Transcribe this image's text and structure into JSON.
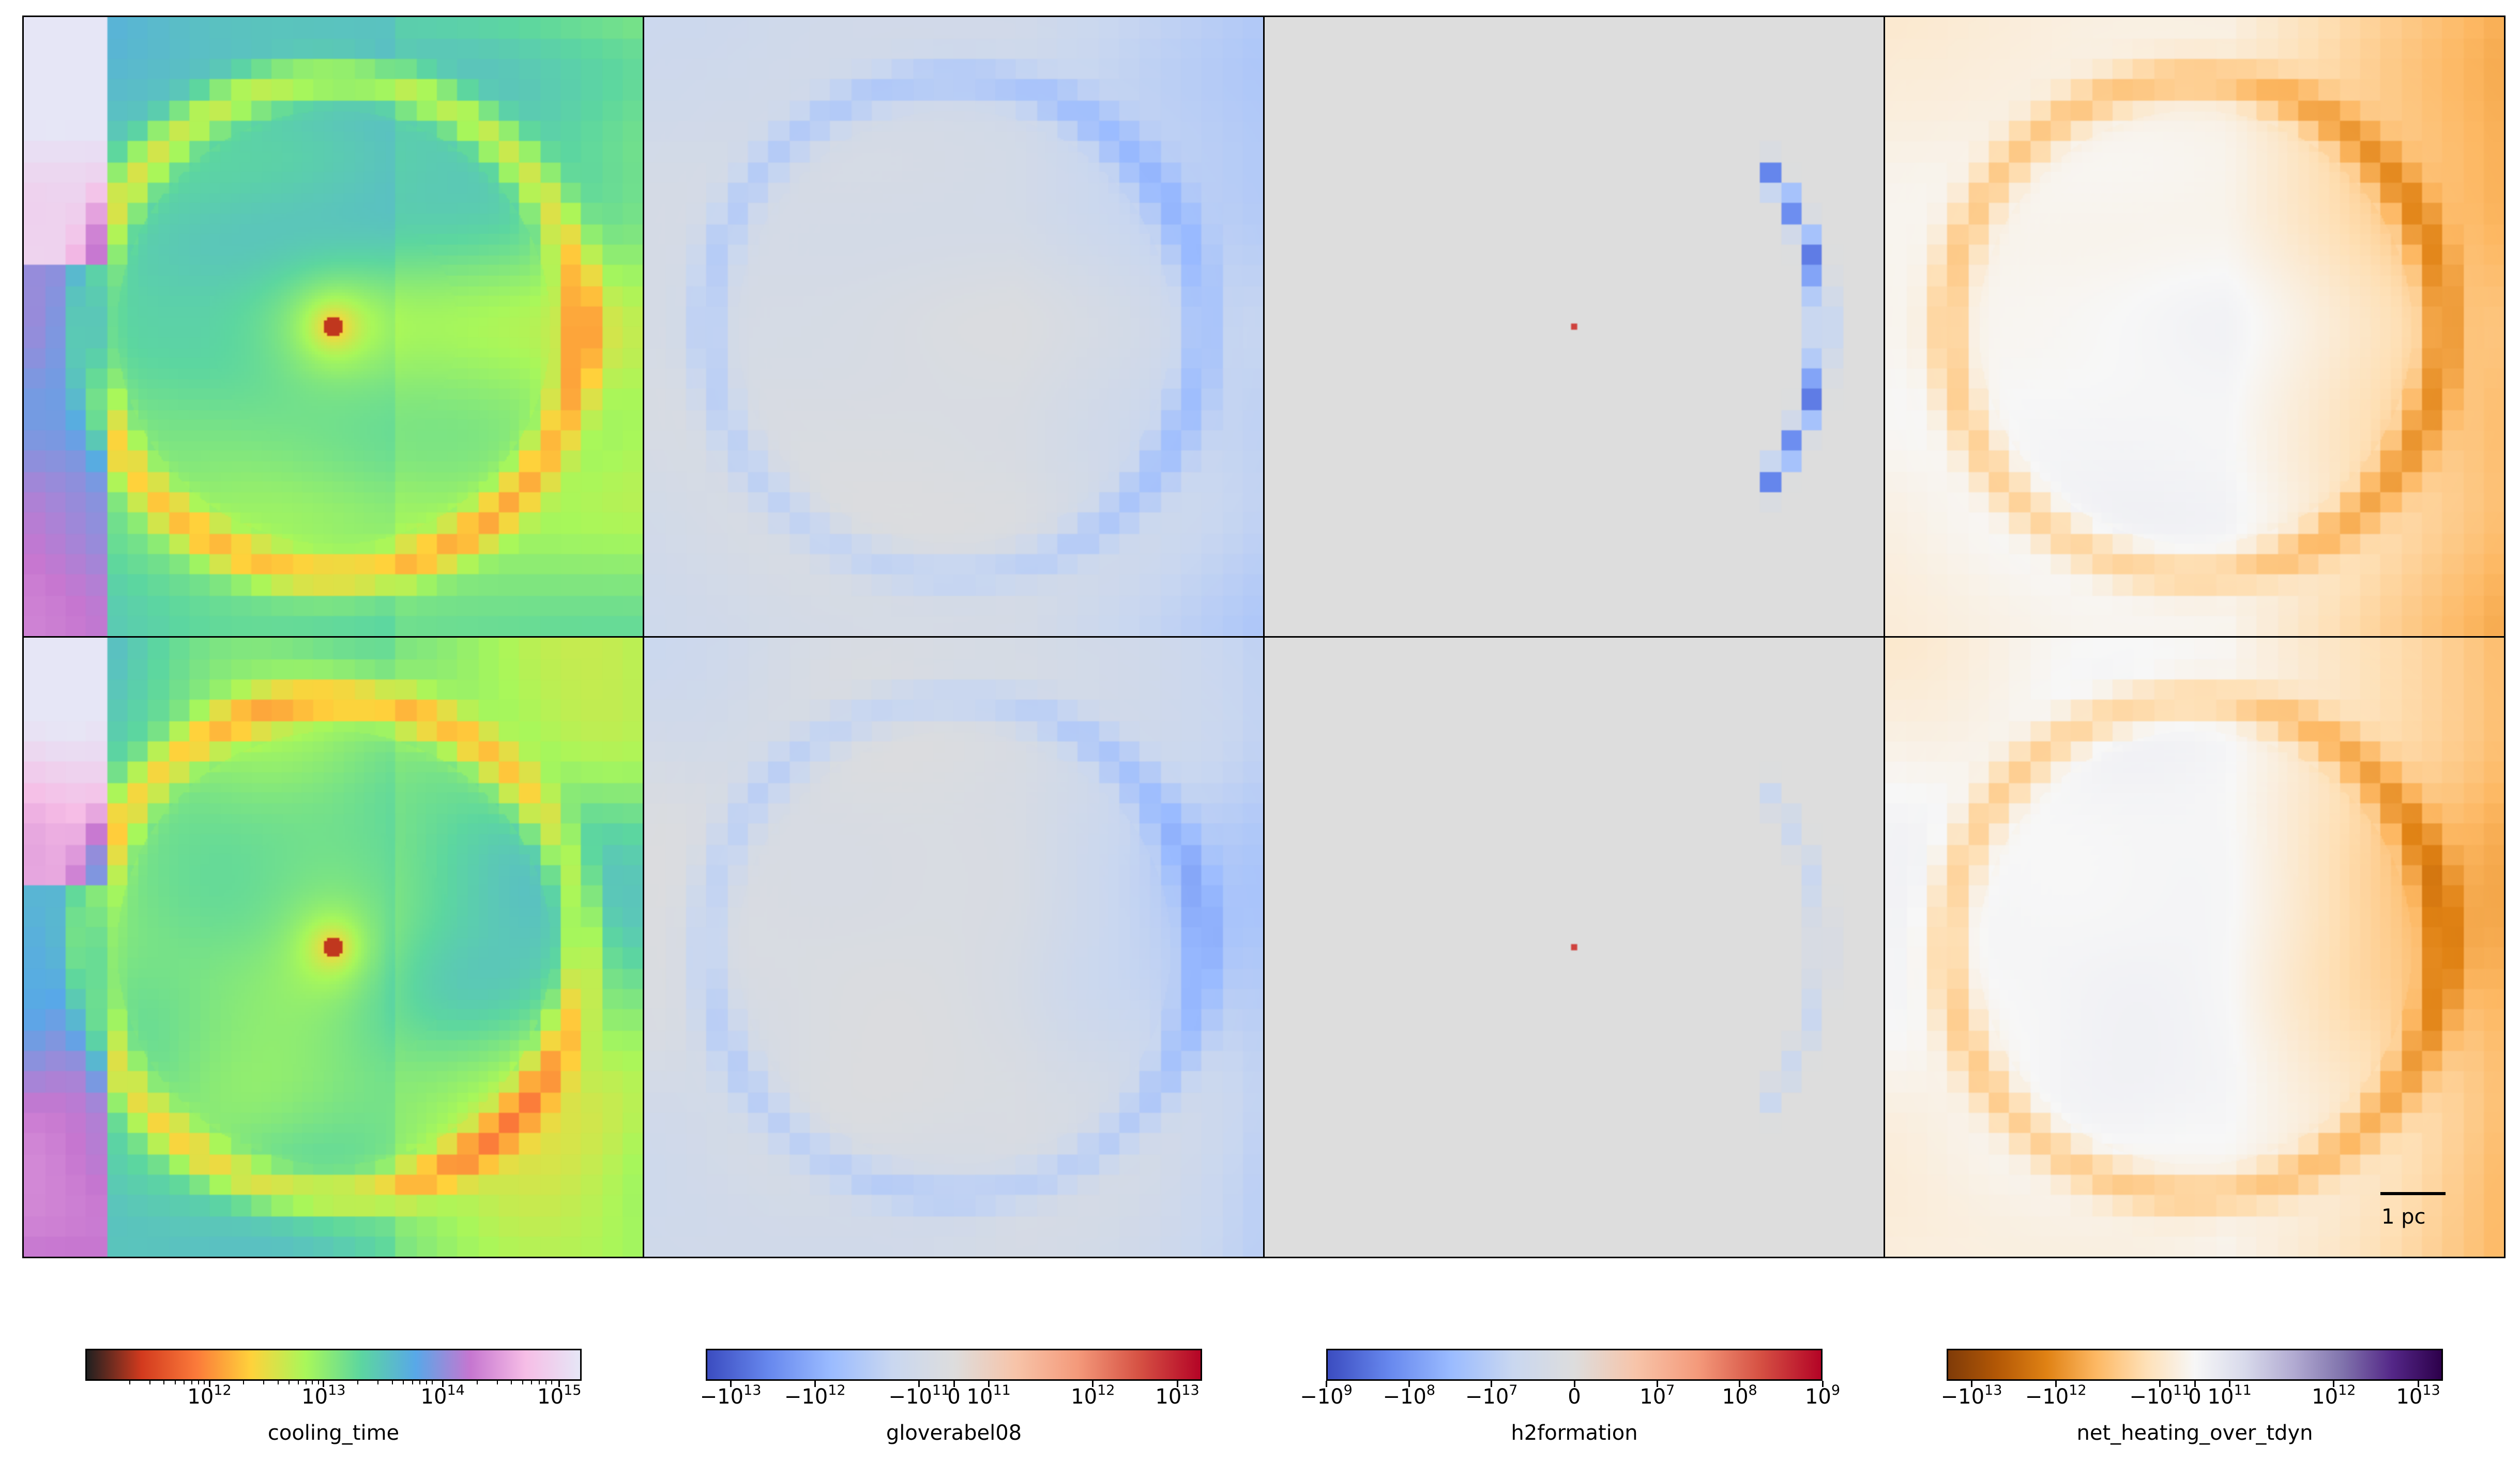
{
  "chart_data": [
    {
      "type": "heatmap",
      "field": "cooling_time",
      "colorbar": {
        "label": "cooling_time",
        "scale": "log",
        "range": [
          100000000000.0,
          1000000000000000.0
        ],
        "colormap": [
          "#202020",
          "#d23a1e",
          "#fb7a3a",
          "#ffd23b",
          "#a8f75a",
          "#5cd6a0",
          "#58a8e8",
          "#c676d0",
          "#f6bde6",
          "#e6e6f6"
        ],
        "ticks": [
          {
            "base": "10",
            "exp": "12",
            "frac": 0.25
          },
          {
            "base": "10",
            "exp": "13",
            "frac": 0.48
          },
          {
            "base": "10",
            "exp": "14",
            "frac": 0.72
          },
          {
            "base": "10",
            "exp": "15",
            "frac": 0.955
          }
        ]
      },
      "panels": [
        "top",
        "bottom"
      ]
    },
    {
      "type": "heatmap",
      "field": "gloverabel08",
      "colorbar": {
        "label": "gloverabel08",
        "scale": "symlog",
        "range": [
          -30000000000000.0,
          30000000000000.0
        ],
        "colormap": [
          "#3b4cc0",
          "#6788ee",
          "#9abbff",
          "#c9d7f0",
          "#dddddd",
          "#f7c4a9",
          "#f49a7b",
          "#d65244",
          "#b40426"
        ],
        "ticks": [
          {
            "base": "−10",
            "exp": "13",
            "frac": 0.05
          },
          {
            "base": "−10",
            "exp": "12",
            "frac": 0.22
          },
          {
            "base": "−10",
            "exp": "11",
            "frac": 0.43
          },
          {
            "base": "0",
            "exp": "",
            "frac": 0.5
          },
          {
            "base": "10",
            "exp": "11",
            "frac": 0.57
          },
          {
            "base": "10",
            "exp": "12",
            "frac": 0.78
          },
          {
            "base": "10",
            "exp": "13",
            "frac": 0.95
          }
        ]
      },
      "panels": [
        "top",
        "bottom"
      ]
    },
    {
      "type": "heatmap",
      "field": "h2formation",
      "colorbar": {
        "label": "h2formation",
        "scale": "symlog",
        "range": [
          -1000000000.0,
          1000000000.0
        ],
        "colormap": [
          "#3b4cc0",
          "#6788ee",
          "#9abbff",
          "#c9d7f0",
          "#dddddd",
          "#f7c4a9",
          "#f49a7b",
          "#d65244",
          "#b40426"
        ],
        "ticks": [
          {
            "base": "−10",
            "exp": "9",
            "frac": 0.0
          },
          {
            "base": "−10",
            "exp": "8",
            "frac": 0.167
          },
          {
            "base": "−10",
            "exp": "7",
            "frac": 0.333
          },
          {
            "base": "0",
            "exp": "",
            "frac": 0.5
          },
          {
            "base": "10",
            "exp": "7",
            "frac": 0.667
          },
          {
            "base": "10",
            "exp": "8",
            "frac": 0.833
          },
          {
            "base": "10",
            "exp": "9",
            "frac": 1.0
          }
        ]
      },
      "panels": [
        "top",
        "bottom"
      ]
    },
    {
      "type": "heatmap",
      "field": "net_heating_over_tdyn",
      "colorbar": {
        "label": "net_heating_over_tdyn",
        "scale": "symlog",
        "range": [
          -30000000000000.0,
          30000000000000.0
        ],
        "colormap": [
          "#7f3b08",
          "#b35806",
          "#e08214",
          "#fdb863",
          "#fee0b6",
          "#f7f7f7",
          "#d8daeb",
          "#b2abd2",
          "#8073ac",
          "#542788",
          "#2d004b"
        ],
        "ticks": [
          {
            "base": "−10",
            "exp": "13",
            "frac": 0.05
          },
          {
            "base": "−10",
            "exp": "12",
            "frac": 0.22
          },
          {
            "base": "−10",
            "exp": "11",
            "frac": 0.43
          },
          {
            "base": "0",
            "exp": "",
            "frac": 0.5
          },
          {
            "base": "10",
            "exp": "11",
            "frac": 0.57
          },
          {
            "base": "10",
            "exp": "12",
            "frac": 0.78
          },
          {
            "base": "10",
            "exp": "13",
            "frac": 0.95
          }
        ]
      },
      "panels": [
        "top",
        "bottom"
      ]
    }
  ],
  "scalebar": {
    "label": "1 pc"
  }
}
